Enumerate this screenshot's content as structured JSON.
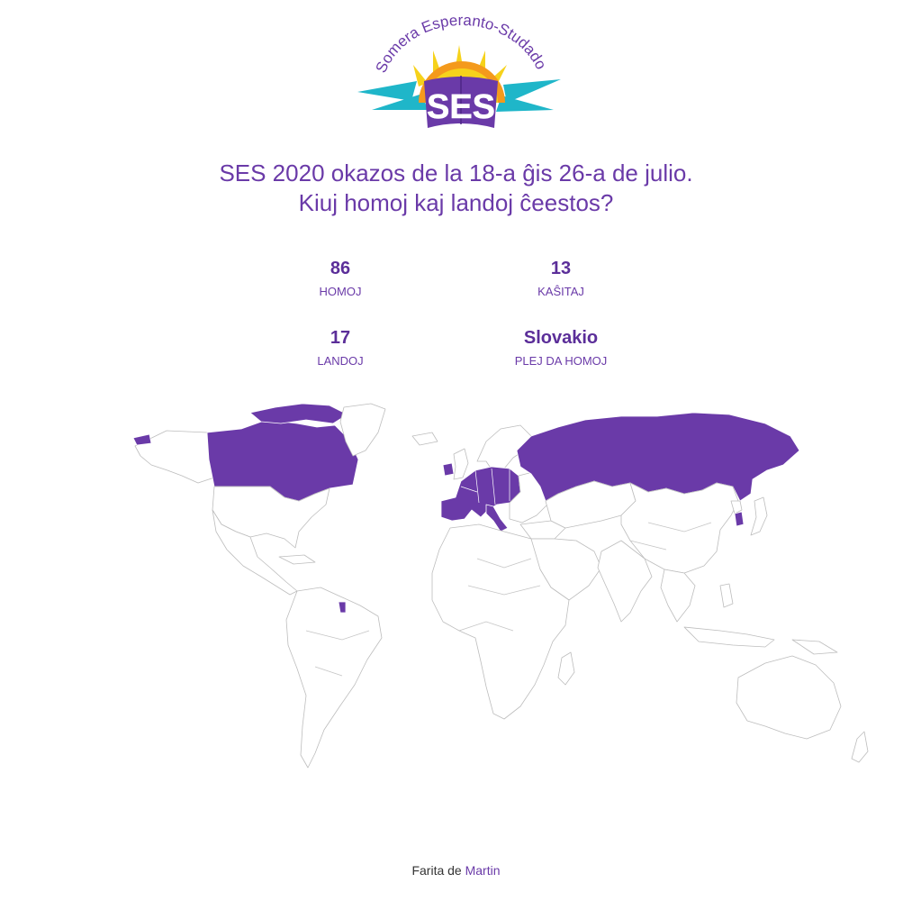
{
  "logo": {
    "arc_text": "Somera Esperanto-Studado",
    "mark_text": "SES",
    "colors": {
      "purple": "#6a3aa8",
      "yellow": "#f6d21b",
      "cyan": "#1fb6c9",
      "orange": "#f49a1c"
    }
  },
  "headline": {
    "line1": "SES 2020 okazos de la 18-a ĝis 26-a de julio.",
    "line2": "Kiuj homoj kaj landoj ĉeestos?"
  },
  "stats": [
    {
      "value": "86",
      "label": "HOMOJ"
    },
    {
      "value": "13",
      "label": "KAŜITAJ"
    },
    {
      "value": "17",
      "label": "LANDOJ"
    },
    {
      "value": "Slovakio",
      "label": "PLEJ DA HOMOJ"
    }
  ],
  "map": {
    "highlight_color": "#6a3aa8",
    "highlighted_countries": [
      "Canada",
      "Greenland (part)",
      "Spain",
      "France",
      "Germany",
      "Poland",
      "Czechia",
      "Slovakia",
      "Austria",
      "Hungary",
      "Switzerland",
      "Italy",
      "Belgium",
      "Netherlands",
      "Ireland",
      "Russia",
      "South Korea",
      "French Guiana"
    ]
  },
  "footer": {
    "prefix": "Farita de",
    "author": "Martin"
  }
}
